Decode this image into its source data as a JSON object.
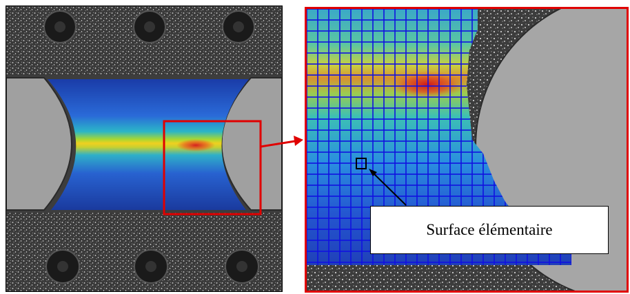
{
  "annotation": {
    "label": "Surface élémentaire"
  },
  "colors": {
    "frame": "#e00000",
    "grid": "#1010e0",
    "arrow": "#000000",
    "speckle_bg": "#4a4a4a",
    "grip_bg": "#9e9e9e"
  },
  "icons": [
    "screw-head-icon",
    "zoom-arrow-icon",
    "pointer-arrow-icon"
  ]
}
